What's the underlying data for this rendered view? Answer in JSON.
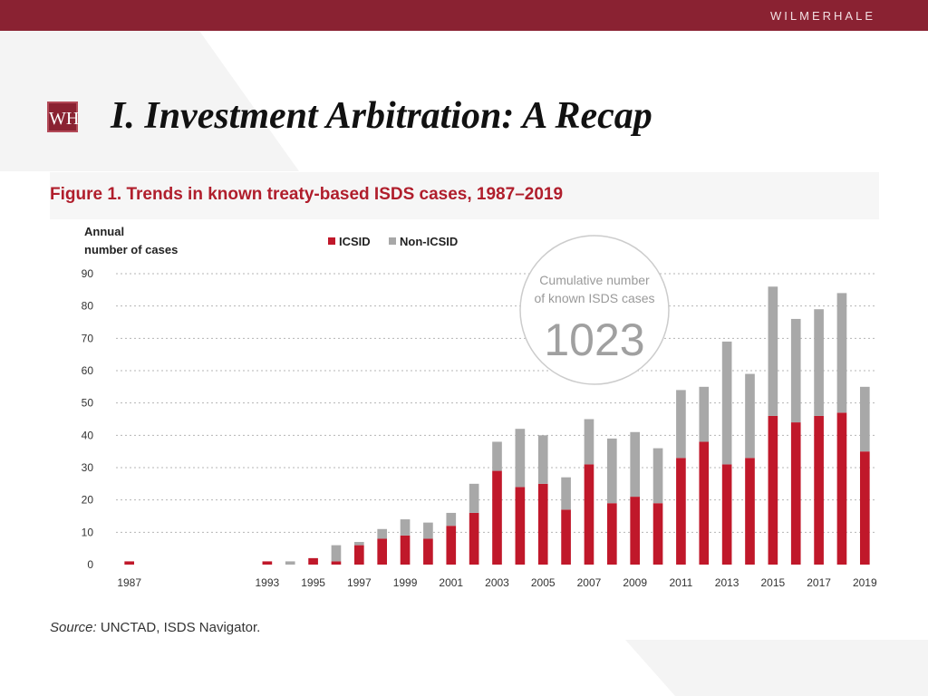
{
  "header": {
    "brand": "WILMERHALE"
  },
  "logo": {
    "text": "WH"
  },
  "slide": {
    "title": "I.   Investment Arbitration: A Recap"
  },
  "figure": {
    "title": "Figure 1. Trends in known treaty-based ISDS cases, 1987–2019",
    "source_label": "Source:",
    "source_text": " UNCTAD, ISDS Navigator."
  },
  "colors": {
    "icsid": "#c0182a",
    "non_icsid": "#a8a8a8",
    "brand": "#8a2232"
  },
  "chart_data": {
    "type": "bar",
    "stacked": true,
    "ylabel": "Annual\nnumber of cases",
    "ylim": [
      0,
      90
    ],
    "yticks": [
      0,
      10,
      20,
      30,
      40,
      50,
      60,
      70,
      80,
      90
    ],
    "grid": true,
    "legend_position": "top-center",
    "x": [
      1987,
      1988,
      1989,
      1990,
      1991,
      1992,
      1993,
      1994,
      1995,
      1996,
      1997,
      1998,
      1999,
      2000,
      2001,
      2002,
      2003,
      2004,
      2005,
      2006,
      2007,
      2008,
      2009,
      2010,
      2011,
      2012,
      2013,
      2014,
      2015,
      2016,
      2017,
      2018,
      2019
    ],
    "x_tick_labels": [
      "1987",
      "1993",
      "1995",
      "1997",
      "1999",
      "2001",
      "2003",
      "2005",
      "2007",
      "2009",
      "2011",
      "2013",
      "2015",
      "2017",
      "2019"
    ],
    "series": [
      {
        "name": "ICSID",
        "values": [
          1,
          0,
          0,
          0,
          0,
          0,
          1,
          0,
          2,
          1,
          6,
          8,
          9,
          8,
          12,
          16,
          29,
          24,
          25,
          17,
          31,
          19,
          21,
          19,
          33,
          38,
          31,
          33,
          46,
          44,
          46,
          47,
          35
        ]
      },
      {
        "name": "Non-ICSID",
        "values": [
          0,
          0,
          0,
          0,
          0,
          0,
          0,
          1,
          0,
          5,
          1,
          3,
          5,
          5,
          4,
          9,
          9,
          18,
          15,
          10,
          14,
          20,
          20,
          17,
          21,
          17,
          38,
          26,
          40,
          32,
          33,
          37,
          20
        ]
      }
    ],
    "annotation": {
      "line1": "Cumulative number",
      "line2": "of known ISDS cases",
      "value": "1023"
    }
  }
}
